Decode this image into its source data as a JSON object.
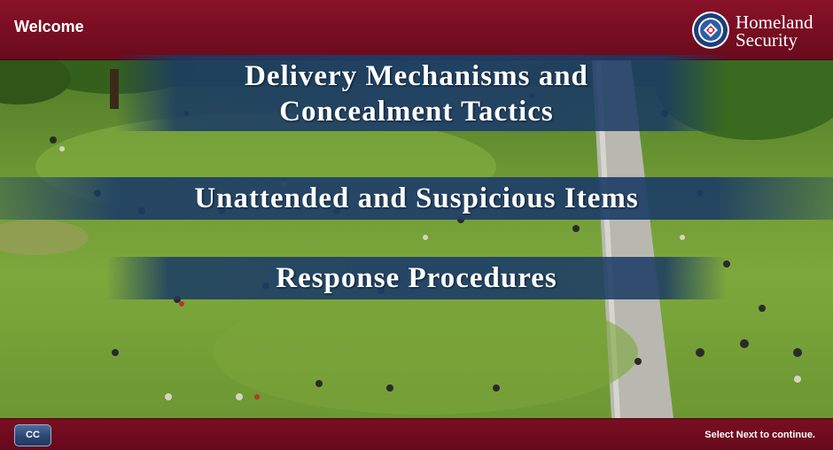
{
  "header": {
    "title": "Welcome",
    "logo": {
      "line1": "Homeland",
      "line2": "Security",
      "icon": "dhs-seal-icon"
    }
  },
  "background": {
    "description_icon": "park-scene-image"
  },
  "menu": {
    "items": [
      {
        "line1": "Delivery Mechanisms and",
        "line2": "Concealment Tactics"
      },
      {
        "label": "Unattended and Suspicious Items"
      },
      {
        "label": "Response Procedures"
      }
    ]
  },
  "footer": {
    "cc_label": "CC",
    "hint": "Select Next to continue."
  },
  "colors": {
    "header_bg": "#7a0e22",
    "banner_bg": "#1e3e68",
    "cc_button": "#2c4774"
  }
}
